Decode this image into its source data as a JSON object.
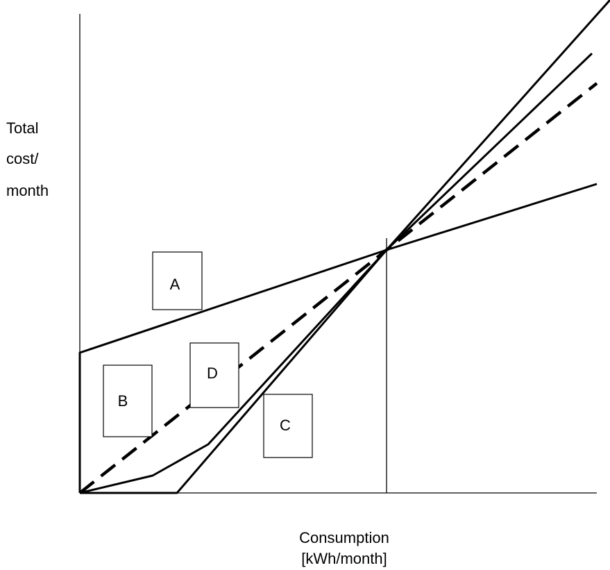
{
  "chart_data": {
    "type": "line",
    "title": "",
    "ylabel_lines": [
      "Total",
      "cost/",
      "month"
    ],
    "xlabel_lines": [
      "Consumption",
      "[kWh/month]"
    ],
    "series": [
      {
        "name": "A",
        "style": "solid"
      },
      {
        "name": "B",
        "style": "solid"
      },
      {
        "name": "C",
        "style": "solid"
      },
      {
        "name": "D",
        "style": "dashed"
      }
    ],
    "axes": {
      "x_ticks": "none",
      "y_ticks": "none",
      "grid": false
    }
  }
}
